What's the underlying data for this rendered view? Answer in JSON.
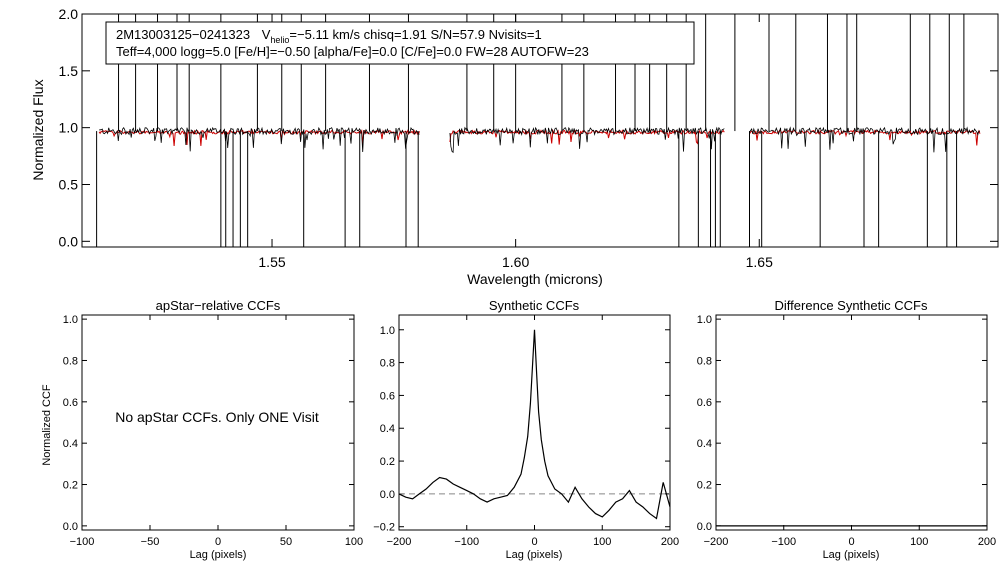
{
  "colors": {
    "observed": "#000000",
    "model": "#cc0000",
    "zero_line": "#888888"
  },
  "info_box": {
    "line1_id": "2M13003125−0241323",
    "line1_v": "V",
    "line1_sub": "helio",
    "line1_rest": "=−5.11 km/s  chisq=1.91  S/N=57.9  Nvisits=1",
    "line2": "Teff=4,000 logg=5.0 [Fe/H]=−0.50 [alpha/Fe]=0.0 [C/Fe]=0.0 FW=28 AUTOFW=23"
  },
  "chart_data": [
    {
      "type": "line",
      "xlabel": "Wavelength (microns)",
      "ylabel": "Normalized Flux",
      "xlim": [
        1.511,
        1.699
      ],
      "ylim": [
        -0.05,
        2.0
      ],
      "xticks": [
        {
          "v": 1.55,
          "label": "1.55"
        },
        {
          "v": 1.6,
          "label": "1.60"
        },
        {
          "v": 1.65,
          "label": "1.65"
        }
      ],
      "yticks": [
        {
          "v": 0.0,
          "label": "0.0"
        },
        {
          "v": 0.5,
          "label": "0.5"
        },
        {
          "v": 1.0,
          "label": "1.0"
        },
        {
          "v": 1.5,
          "label": "1.5"
        },
        {
          "v": 2.0,
          "label": "2.0"
        }
      ],
      "chips": [
        [
          1.5145,
          1.5805
        ],
        [
          1.5865,
          1.643
        ],
        [
          1.648,
          1.6955
        ]
      ],
      "continuum": 0.97,
      "model_level": 0.96,
      "emission_spikes_um": [
        1.5185,
        1.522,
        1.5265,
        1.5305,
        1.533,
        1.5395,
        1.547,
        1.552,
        1.556,
        1.561,
        1.57,
        1.578,
        1.59,
        1.5955,
        1.6,
        1.6095,
        1.614,
        1.6205,
        1.6245,
        1.6275,
        1.631,
        1.635,
        1.639,
        1.645,
        1.652,
        1.6575,
        1.664,
        1.668,
        1.67,
        1.681,
        1.685,
        1.689,
        1.692
      ],
      "absorption_dips_um": [
        1.514,
        1.5395,
        1.5405,
        1.542,
        1.5435,
        1.545,
        1.5565,
        1.565,
        1.568,
        1.5775,
        1.58,
        1.6335,
        1.6375,
        1.64,
        1.641,
        1.642,
        1.648,
        1.6505,
        1.6625,
        1.6715,
        1.6745,
        1.6845,
        1.6885,
        1.6905
      ],
      "series": [
        {
          "name": "",
          "values": []
        }
      ]
    },
    {
      "type": "line",
      "title": "apStar−relative CCFs",
      "xlabel": "Lag (pixels)",
      "ylabel": "Normalized CCF",
      "xlim": [
        -100,
        100
      ],
      "ylim": [
        -0.02,
        1.02
      ],
      "xticks": [
        {
          "v": -100,
          "label": "−100"
        },
        {
          "v": -50,
          "label": "−50"
        },
        {
          "v": 0,
          "label": "0"
        },
        {
          "v": 50,
          "label": "50"
        },
        {
          "v": 100,
          "label": "100"
        }
      ],
      "yticks": [
        {
          "v": 0.0,
          "label": "0.0"
        },
        {
          "v": 0.2,
          "label": "0.2"
        },
        {
          "v": 0.4,
          "label": "0.4"
        },
        {
          "v": 0.6,
          "label": "0.6"
        },
        {
          "v": 0.8,
          "label": "0.8"
        },
        {
          "v": 1.0,
          "label": "1.0"
        }
      ],
      "annotation": "No apStar CCFs.  Only ONE Visit"
    },
    {
      "type": "line",
      "title": "Synthetic CCFs",
      "xlabel": "Lag (pixels)",
      "xlim": [
        -200,
        200
      ],
      "ylim": [
        -0.22,
        1.09
      ],
      "xticks": [
        {
          "v": -200,
          "label": "−200"
        },
        {
          "v": -100,
          "label": "−100"
        },
        {
          "v": 0,
          "label": "0"
        },
        {
          "v": 100,
          "label": "100"
        },
        {
          "v": 200,
          "label": "200"
        }
      ],
      "yticks": [
        {
          "v": -0.2,
          "label": "−0.2"
        },
        {
          "v": 0.0,
          "label": "0.0"
        },
        {
          "v": 0.2,
          "label": "0.2"
        },
        {
          "v": 0.4,
          "label": "0.4"
        },
        {
          "v": 0.6,
          "label": "0.6"
        },
        {
          "v": 0.8,
          "label": "0.8"
        },
        {
          "v": 1.0,
          "label": "1.0"
        }
      ],
      "zero_line": 0.0,
      "x": [
        -200,
        -190,
        -180,
        -170,
        -160,
        -150,
        -140,
        -130,
        -120,
        -110,
        -100,
        -90,
        -80,
        -70,
        -60,
        -50,
        -40,
        -30,
        -20,
        -15,
        -10,
        -6,
        -3,
        0,
        3,
        6,
        10,
        15,
        20,
        30,
        40,
        50,
        60,
        70,
        80,
        90,
        100,
        110,
        120,
        130,
        140,
        150,
        160,
        170,
        180,
        190,
        200
      ],
      "values": [
        0.0,
        -0.02,
        -0.03,
        0.0,
        0.03,
        0.07,
        0.1,
        0.09,
        0.06,
        0.04,
        0.02,
        0.0,
        -0.03,
        -0.05,
        -0.03,
        -0.02,
        -0.01,
        0.04,
        0.12,
        0.22,
        0.35,
        0.55,
        0.78,
        1.0,
        0.75,
        0.5,
        0.33,
        0.2,
        0.11,
        0.03,
        0.0,
        -0.05,
        0.04,
        -0.03,
        -0.08,
        -0.12,
        -0.14,
        -0.1,
        -0.05,
        -0.03,
        0.02,
        -0.05,
        -0.08,
        -0.12,
        -0.15,
        0.07,
        -0.08
      ]
    },
    {
      "type": "line",
      "title": "Difference Synthetic CCFs",
      "xlabel": "Lag (pixels)",
      "xlim": [
        -200,
        200
      ],
      "ylim": [
        -0.02,
        1.02
      ],
      "xticks": [
        {
          "v": -200,
          "label": "−200"
        },
        {
          "v": -100,
          "label": "−100"
        },
        {
          "v": 0,
          "label": "0"
        },
        {
          "v": 100,
          "label": "100"
        },
        {
          "v": 200,
          "label": "200"
        }
      ],
      "yticks": [
        {
          "v": 0.0,
          "label": "0.0"
        },
        {
          "v": 0.2,
          "label": "0.2"
        },
        {
          "v": 0.4,
          "label": "0.4"
        },
        {
          "v": 0.6,
          "label": "0.6"
        },
        {
          "v": 0.8,
          "label": "0.8"
        },
        {
          "v": 1.0,
          "label": "1.0"
        }
      ],
      "x": [
        -200,
        200
      ],
      "values": [
        0.0,
        0.0
      ]
    }
  ]
}
